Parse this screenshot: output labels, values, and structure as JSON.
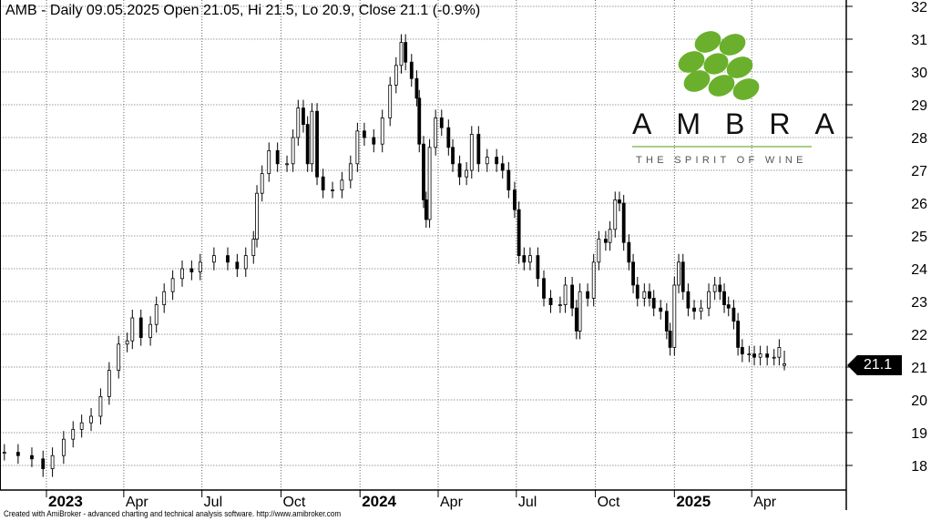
{
  "header": {
    "title": "AMB - Daily 09.05.2025 Open 21.05, Hi 21.5, Lo 20.9, Close 21.1 (-0.9%)"
  },
  "footer": {
    "credit": "Created with AmiBroker - advanced charting and technical analysis software. http://www.amibroker.com"
  },
  "logo": {
    "brand": "AMBRA",
    "tagline": "THE SPIRIT OF WINE",
    "color": "#6ab02c"
  },
  "price_tag": {
    "value": "21.1"
  },
  "chart_data": {
    "type": "candlestick",
    "title": "AMB - Daily 09.05.2025 Open 21.05, Hi 21.5, Lo 20.9, Close 21.1 (-0.9%)",
    "ylim": [
      17.5,
      32
    ],
    "y_ticks": [
      "18",
      "19",
      "20",
      "21",
      "22",
      "23",
      "24",
      "25",
      "26",
      "27",
      "28",
      "29",
      "30",
      "31",
      "32"
    ],
    "x_ticks": [
      {
        "label": "2023",
        "date": "2023-01-01",
        "bold": true
      },
      {
        "label": "Apr",
        "date": "2023-04-01"
      },
      {
        "label": "Jul",
        "date": "2023-07-01"
      },
      {
        "label": "Oct",
        "date": "2023-10-01"
      },
      {
        "label": "2024",
        "date": "2024-01-01",
        "bold": true
      },
      {
        "label": "Apr",
        "date": "2024-04-01"
      },
      {
        "label": "Jul",
        "date": "2024-07-01"
      },
      {
        "label": "Oct",
        "date": "2024-10-01"
      },
      {
        "label": "2025",
        "date": "2025-01-01",
        "bold": true
      },
      {
        "label": "Apr",
        "date": "2025-04-01"
      }
    ],
    "grid": true,
    "last": {
      "date": "2025-05-09",
      "open": 21.05,
      "high": 21.5,
      "low": 20.9,
      "close": 21.1,
      "change_pct": -0.9
    },
    "closes": [
      [
        "2022-11-13",
        18.4
      ],
      [
        "2022-11-29",
        18.3
      ],
      [
        "2022-12-15",
        18.2
      ],
      [
        "2022-12-28",
        17.9
      ],
      [
        "2023-01-08",
        18.3
      ],
      [
        "2023-01-21",
        18.8
      ],
      [
        "2023-02-01",
        19.1
      ],
      [
        "2023-02-11",
        19.3
      ],
      [
        "2023-02-22",
        19.5
      ],
      [
        "2023-03-05",
        20.1
      ],
      [
        "2023-03-15",
        20.9
      ],
      [
        "2023-03-26",
        21.7
      ],
      [
        "2023-04-05",
        21.8
      ],
      [
        "2023-04-11",
        22.5
      ],
      [
        "2023-04-21",
        21.9
      ],
      [
        "2023-05-02",
        22.3
      ],
      [
        "2023-05-09",
        22.9
      ],
      [
        "2023-05-18",
        23.3
      ],
      [
        "2023-05-28",
        23.7
      ],
      [
        "2023-06-08",
        24.0
      ],
      [
        "2023-06-19",
        23.9
      ],
      [
        "2023-06-29",
        24.2
      ],
      [
        "2023-07-15",
        24.4
      ],
      [
        "2023-07-31",
        24.2
      ],
      [
        "2023-08-11",
        24.0
      ],
      [
        "2023-08-21",
        24.4
      ],
      [
        "2023-08-30",
        24.9
      ],
      [
        "2023-09-03",
        26.3
      ],
      [
        "2023-09-09",
        26.9
      ],
      [
        "2023-09-17",
        27.6
      ],
      [
        "2023-09-27",
        27.2
      ],
      [
        "2023-10-08",
        27.2
      ],
      [
        "2023-10-15",
        28.0
      ],
      [
        "2023-10-21",
        28.9
      ],
      [
        "2023-10-27",
        28.4
      ],
      [
        "2023-11-01",
        27.2
      ],
      [
        "2023-11-06",
        28.8
      ],
      [
        "2023-11-12",
        26.8
      ],
      [
        "2023-11-19",
        26.4
      ],
      [
        "2023-11-30",
        26.4
      ],
      [
        "2023-12-11",
        26.7
      ],
      [
        "2023-12-21",
        27.2
      ],
      [
        "2023-12-29",
        28.2
      ],
      [
        "2024-01-06",
        28.0
      ],
      [
        "2024-01-17",
        27.8
      ],
      [
        "2024-01-27",
        28.6
      ],
      [
        "2024-02-05",
        29.6
      ],
      [
        "2024-02-12",
        30.2
      ],
      [
        "2024-02-18",
        30.9
      ],
      [
        "2024-02-23",
        30.3
      ],
      [
        "2024-03-01",
        29.8
      ],
      [
        "2024-03-07",
        29.2
      ],
      [
        "2024-03-10",
        27.8
      ],
      [
        "2024-03-15",
        26.1
      ],
      [
        "2024-03-18",
        25.5
      ],
      [
        "2024-03-22",
        27.7
      ],
      [
        "2024-03-29",
        28.6
      ],
      [
        "2024-04-05",
        28.3
      ],
      [
        "2024-04-13",
        27.7
      ],
      [
        "2024-04-18",
        27.2
      ],
      [
        "2024-04-26",
        26.8
      ],
      [
        "2024-05-04",
        27.0
      ],
      [
        "2024-05-10",
        28.1
      ],
      [
        "2024-05-18",
        27.2
      ],
      [
        "2024-05-28",
        27.4
      ],
      [
        "2024-06-08",
        27.2
      ],
      [
        "2024-06-15",
        27.0
      ],
      [
        "2024-06-22",
        26.4
      ],
      [
        "2024-06-29",
        25.8
      ],
      [
        "2024-07-04",
        24.4
      ],
      [
        "2024-07-10",
        24.2
      ],
      [
        "2024-07-17",
        24.4
      ],
      [
        "2024-07-26",
        23.7
      ],
      [
        "2024-08-02",
        23.1
      ],
      [
        "2024-08-10",
        22.9
      ],
      [
        "2024-08-21",
        22.9
      ],
      [
        "2024-08-27",
        23.5
      ],
      [
        "2024-09-04",
        22.8
      ],
      [
        "2024-09-09",
        22.1
      ],
      [
        "2024-09-13",
        23.3
      ],
      [
        "2024-09-22",
        23.1
      ],
      [
        "2024-09-29",
        24.2
      ],
      [
        "2024-10-05",
        24.9
      ],
      [
        "2024-10-13",
        24.8
      ],
      [
        "2024-10-18",
        25.2
      ],
      [
        "2024-10-24",
        26.1
      ],
      [
        "2024-10-29",
        26.0
      ],
      [
        "2024-11-03",
        24.8
      ],
      [
        "2024-11-09",
        24.2
      ],
      [
        "2024-11-14",
        23.5
      ],
      [
        "2024-11-19",
        23.1
      ],
      [
        "2024-11-27",
        23.3
      ],
      [
        "2024-12-03",
        23.1
      ],
      [
        "2024-12-08",
        22.8
      ],
      [
        "2024-12-16",
        22.7
      ],
      [
        "2024-12-23",
        22.1
      ],
      [
        "2024-12-27",
        21.6
      ],
      [
        "2025-01-01",
        23.5
      ],
      [
        "2025-01-06",
        24.2
      ],
      [
        "2025-01-11",
        23.3
      ],
      [
        "2025-01-17",
        22.8
      ],
      [
        "2025-01-24",
        22.7
      ],
      [
        "2025-02-01",
        22.8
      ],
      [
        "2025-02-10",
        23.3
      ],
      [
        "2025-02-17",
        23.5
      ],
      [
        "2025-02-23",
        23.3
      ],
      [
        "2025-02-28",
        22.9
      ],
      [
        "2025-03-05",
        22.8
      ],
      [
        "2025-03-11",
        22.4
      ],
      [
        "2025-03-16",
        21.6
      ],
      [
        "2025-03-21",
        21.4
      ],
      [
        "2025-03-29",
        21.4
      ],
      [
        "2025-04-04",
        21.3
      ],
      [
        "2025-04-11",
        21.4
      ],
      [
        "2025-04-19",
        21.3
      ],
      [
        "2025-04-27",
        21.3
      ],
      [
        "2025-05-03",
        21.6
      ],
      [
        "2025-05-09",
        21.1
      ]
    ]
  }
}
